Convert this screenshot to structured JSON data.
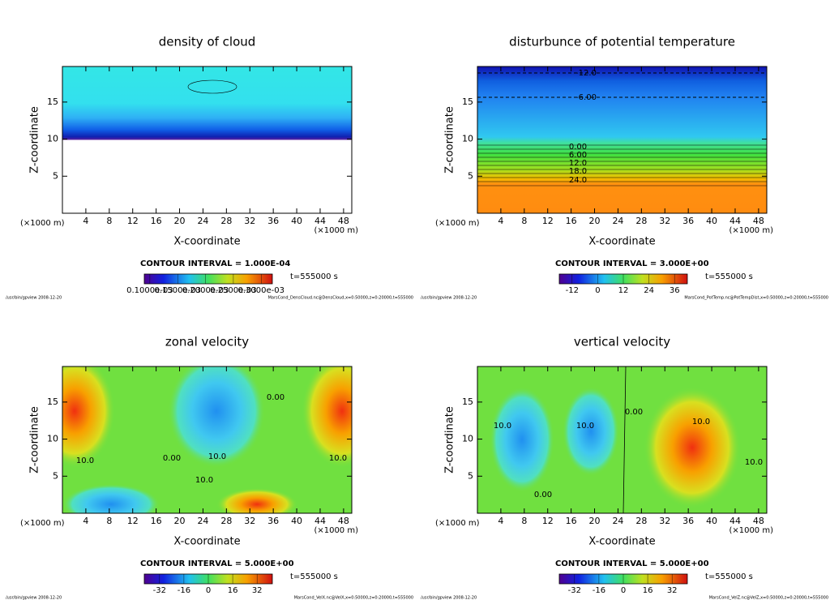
{
  "chart_data": [
    {
      "type": "contour",
      "title": "density of cloud",
      "xlabel": "X-coordinate",
      "ylabel": "Z-coordinate",
      "x_unit": "(×1000 m)",
      "y_unit": "(×1000 m)",
      "xlim": [
        0,
        49.4
      ],
      "ylim": [
        0,
        19.8
      ],
      "xticks": [
        4,
        8,
        12,
        16,
        20,
        24,
        28,
        32,
        36,
        40,
        44,
        48
      ],
      "yticks": [
        5,
        10,
        15
      ],
      "contour_interval": "CONTOUR INTERVAL = 1.000E-04",
      "time": "t=555000 s",
      "clim": [
        9e-05,
        0.00032
      ],
      "colorbar_ticks": [
        {
          "value": 0.0001,
          "label": "0.1000e-03"
        },
        {
          "value": 0.00015,
          "label": "0.1500e-03"
        },
        {
          "value": 0.0002,
          "label": "0.2000e-03"
        },
        {
          "value": 0.00025,
          "label": "0.2500e-03"
        },
        {
          "value": 0.0003,
          "label": "0.3000e-03"
        }
      ],
      "annotations": [],
      "footer_left": "/usr/bin/gpview   2008-12-20",
      "footer_right": "MarsCond_DensCloud.nc@DensCloud,x=0:50000,z=0:20000,t=555000"
    },
    {
      "type": "contour",
      "title": "disturbunce of potential temperature",
      "xlabel": "X-coordinate",
      "ylabel": "Z-coordinate",
      "x_unit": "(×1000 m)",
      "y_unit": "(×1000 m)",
      "xlim": [
        0,
        49.4
      ],
      "ylim": [
        0,
        19.8
      ],
      "xticks": [
        4,
        8,
        12,
        16,
        20,
        24,
        28,
        32,
        36,
        40,
        44,
        48
      ],
      "yticks": [
        5,
        10,
        15
      ],
      "contour_interval": "CONTOUR INTERVAL = 3.000E+00",
      "time": "t=555000 s",
      "clim": [
        -18,
        42
      ],
      "colorbar_ticks": [
        -12,
        0,
        12,
        24,
        36
      ],
      "annotations": [
        "-12.0",
        "-6.00",
        "0.00",
        "6.00",
        "12.0",
        "18.0",
        "24.0"
      ],
      "footer_left": "/usr/bin/gpview   2008-12-20",
      "footer_right": "MarsCond_PotTemp.nc@PotTempDist,x=0:50000,z=0:20000,t=555000"
    },
    {
      "type": "contour",
      "title": "zonal velocity",
      "xlabel": "X-coordinate",
      "ylabel": "Z-coordinate",
      "x_unit": "(×1000 m)",
      "y_unit": "(×1000 m)",
      "xlim": [
        0,
        49.4
      ],
      "ylim": [
        0,
        19.8
      ],
      "xticks": [
        4,
        8,
        12,
        16,
        20,
        24,
        28,
        32,
        36,
        40,
        44,
        48
      ],
      "yticks": [
        5,
        10,
        15
      ],
      "contour_interval": "CONTOUR INTERVAL = 5.000E+00",
      "time": "t=555000 s",
      "clim": [
        -42,
        42
      ],
      "colorbar_ticks": [
        -32,
        -16,
        0,
        16,
        32
      ],
      "annotations": [
        "10.0",
        "0.00",
        "10.0",
        "10.0",
        "0.00",
        "10.0"
      ],
      "footer_left": "/usr/bin/gpview   2008-12-20",
      "footer_right": "MarsCond_VelX.nc@VelX,x=0:50000,z=0:20000,t=555000"
    },
    {
      "type": "contour",
      "title": "vertical velocity",
      "xlabel": "X-coordinate",
      "ylabel": "Z-coordinate",
      "x_unit": "(×1000 m)",
      "y_unit": "(×1000 m)",
      "xlim": [
        0,
        49.4
      ],
      "ylim": [
        0,
        19.8
      ],
      "xticks": [
        4,
        8,
        12,
        16,
        20,
        24,
        28,
        32,
        36,
        40,
        44,
        48
      ],
      "yticks": [
        5,
        10,
        15
      ],
      "contour_interval": "CONTOUR INTERVAL = 5.000E+00",
      "time": "t=555000 s",
      "clim": [
        -42,
        42
      ],
      "colorbar_ticks": [
        -32,
        -16,
        0,
        16,
        32
      ],
      "annotations": [
        "10.0",
        "10.0",
        "0.00",
        "0.00",
        "10.0",
        "10.0"
      ],
      "footer_left": "/usr/bin/gpview   2008-12-20",
      "footer_right": "MarsCond_VelZ.nc@VelZ,x=0:50000,z=0:20000,t=555000"
    }
  ]
}
